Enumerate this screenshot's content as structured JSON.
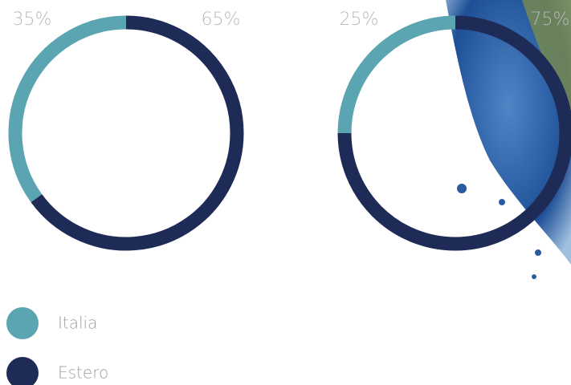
{
  "legend": [
    {
      "name": "Italia",
      "color": "#5ba4b2"
    },
    {
      "name": "Estero",
      "color": "#1f2b57"
    }
  ],
  "chart_data": [
    {
      "type": "donut",
      "values": [
        35,
        65
      ],
      "value_labels": [
        "35%",
        "65%"
      ]
    },
    {
      "type": "donut",
      "values": [
        25,
        75
      ],
      "value_labels": [
        "25%",
        "75%"
      ]
    }
  ]
}
